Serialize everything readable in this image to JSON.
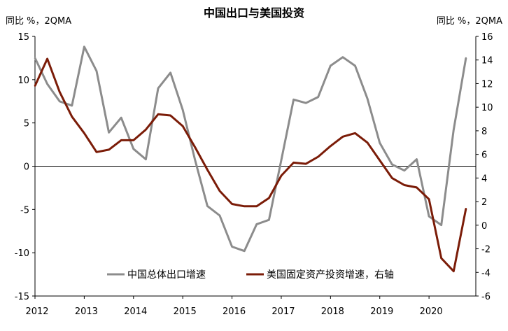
{
  "chart_data": {
    "type": "line",
    "title": "中国出口与美国投资",
    "left_unit": "同比 %，2QMA",
    "right_unit": "同比 %，2QMA",
    "x_ticks": [
      "2012",
      "2013",
      "2014",
      "2015",
      "2016",
      "2017",
      "2018",
      "2019",
      "2020"
    ],
    "y_left": {
      "lim": [
        -15,
        15
      ],
      "ticks": [
        "15",
        "10",
        "5",
        "0",
        "-5",
        "-10",
        "-15"
      ]
    },
    "y_right": {
      "lim": [
        -6,
        16
      ],
      "ticks": [
        "16",
        "14",
        "12",
        "10",
        "8",
        "6",
        "4",
        "2",
        "0",
        "-2",
        "-4",
        "-6"
      ]
    },
    "grid": false,
    "zero_line": true,
    "legend_position": "bottom",
    "colors": {
      "china_exports": "#8c8c8c",
      "us_fai": "#7b1c08",
      "axis": "#000000"
    },
    "series": [
      {
        "name": "中国总体出口增速",
        "axis": "left",
        "x": [
          2012.0,
          2012.25,
          2012.5,
          2012.75,
          2013.0,
          2013.25,
          2013.5,
          2013.75,
          2014.0,
          2014.25,
          2014.5,
          2014.75,
          2015.0,
          2015.25,
          2015.5,
          2015.75,
          2016.0,
          2016.25,
          2016.5,
          2016.75,
          2017.0,
          2017.25,
          2017.5,
          2017.75,
          2018.0,
          2018.25,
          2018.5,
          2018.75,
          2019.0,
          2019.25,
          2019.5,
          2019.75,
          2020.0,
          2020.25,
          2020.5,
          2020.75
        ],
        "values": [
          12.5,
          9.5,
          7.5,
          7.0,
          13.8,
          11.0,
          3.9,
          5.6,
          2.0,
          0.8,
          9.0,
          10.8,
          6.5,
          0.7,
          -4.6,
          -5.7,
          -9.3,
          -9.8,
          -6.7,
          -6.2,
          0.7,
          7.7,
          7.3,
          8.0,
          11.6,
          12.6,
          11.6,
          7.8,
          2.7,
          0.2,
          -0.5,
          0.8,
          -5.8,
          -6.8,
          4.2,
          12.5
        ]
      },
      {
        "name": "美国固定资产投资增速，右轴",
        "axis": "right",
        "x": [
          2012.0,
          2012.25,
          2012.5,
          2012.75,
          2013.0,
          2013.25,
          2013.5,
          2013.75,
          2014.0,
          2014.25,
          2014.5,
          2014.75,
          2015.0,
          2015.25,
          2015.5,
          2015.75,
          2016.0,
          2016.25,
          2016.5,
          2016.75,
          2017.0,
          2017.25,
          2017.5,
          2017.75,
          2018.0,
          2018.25,
          2018.5,
          2018.75,
          2019.0,
          2019.25,
          2019.5,
          2019.75,
          2020.0,
          2020.25,
          2020.5,
          2020.75
        ],
        "values": [
          11.8,
          14.1,
          11.3,
          9.2,
          7.8,
          6.2,
          6.4,
          7.2,
          7.2,
          8.1,
          9.4,
          9.3,
          8.4,
          6.6,
          4.7,
          2.9,
          1.8,
          1.6,
          1.6,
          2.3,
          4.2,
          5.3,
          5.2,
          5.8,
          6.7,
          7.5,
          7.8,
          7.0,
          5.5,
          4.0,
          3.4,
          3.2,
          2.2,
          -2.8,
          -3.9,
          1.4
        ]
      }
    ]
  }
}
